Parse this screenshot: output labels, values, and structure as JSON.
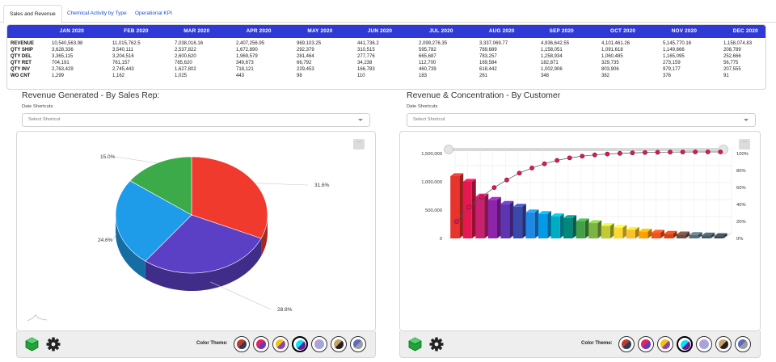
{
  "tabs": [
    {
      "label": "Sales and Revenue",
      "active": true
    },
    {
      "label": "Chemical Activity by Type",
      "active": false
    },
    {
      "label": "Operational KPI",
      "active": false
    }
  ],
  "summary": {
    "months": [
      "JAN 2020",
      "FEB 2020",
      "MAR 2020",
      "APR 2020",
      "MAY 2020",
      "JUN 2020",
      "JUL 2020",
      "AUG 2020",
      "SEP 2020",
      "OCT 2020",
      "NOV 2020",
      "DEC 2020"
    ],
    "rows": [
      {
        "label": "REVENUE",
        "values": [
          "10,540,563.98",
          "11,015,762.5",
          "7,038,016.16",
          "2,407,256.95",
          "969,103.25",
          "441,736.2",
          "2,099,276.35",
          "3,337,069.77",
          "4,936,642.55",
          "4,101,461.26",
          "5,145,770.16",
          "1,158,074.83"
        ]
      },
      {
        "label": "QTY SHIP",
        "values": [
          "3,628,336",
          "3,540,111",
          "2,537,822",
          "1,672,890",
          "292,379",
          "310,515",
          "595,782",
          "789,689",
          "1,158,051",
          "1,091,618",
          "1,149,666",
          "208,789"
        ]
      },
      {
        "label": "QTY DEL",
        "values": [
          "3,365,115",
          "3,204,516",
          "2,600,620",
          "1,969,579",
          "281,464",
          "277,776",
          "665,687",
          "783,257",
          "1,258,934",
          "1,060,485",
          "1,165,095",
          "252,666"
        ]
      },
      {
        "label": "QTY RET",
        "values": [
          "704,191",
          "761,157",
          "785,620",
          "349,673",
          "66,792",
          "34,238",
          "112,700",
          "169,584",
          "182,871",
          "329,735",
          "273,159",
          "56,775"
        ]
      },
      {
        "label": "QTY INV",
        "values": [
          "2,763,429",
          "2,745,443",
          "1,627,802",
          "718,121",
          "229,453",
          "166,783",
          "460,739",
          "618,442",
          "1,002,906",
          "803,906",
          "979,177",
          "207,555"
        ]
      },
      {
        "label": "WO CNT",
        "values": [
          "1,299",
          "1,162",
          "1,025",
          "443",
          "98",
          "110",
          "183",
          "261",
          "348",
          "382",
          "376",
          "91"
        ]
      }
    ]
  },
  "left_panel": {
    "title": "Revenue Generated - By Sales Rep:",
    "shortcut_label": "Date Shortcuts",
    "select_placeholder": "Select Shortcut",
    "menu_label": "···",
    "theme_label": "Color Theme:"
  },
  "right_panel": {
    "title": "Revenue & Concentration - By Customer",
    "shortcut_label": "Date Shortcuts",
    "select_placeholder": "Select Shortcut",
    "menu_label": "···",
    "theme_label": "Color Theme:"
  },
  "themes": [
    {
      "name": "theme-1",
      "colors": [
        "#c0392b",
        "#2c3e50"
      ]
    },
    {
      "name": "theme-2",
      "colors": [
        "#e91e63",
        "#673ab7"
      ]
    },
    {
      "name": "theme-3",
      "colors": [
        "#f1c40f",
        "#8e44ad"
      ]
    },
    {
      "name": "theme-4",
      "colors": [
        "#00e5ff",
        "#6a1b9a"
      ],
      "selected": true
    },
    {
      "name": "theme-5",
      "colors": [
        "#b39ddb",
        "#9fa8da"
      ]
    },
    {
      "name": "theme-6",
      "colors": [
        "#c8a165",
        "#222222"
      ]
    },
    {
      "name": "theme-7",
      "colors": [
        "#5c6bc0",
        "#9e9e9e"
      ]
    }
  ],
  "chart_data": [
    {
      "type": "pie",
      "title": "",
      "slices": [
        {
          "label": "31.6%",
          "value": 31.6,
          "color": "#f03a2e"
        },
        {
          "label": "28.8%",
          "value": 28.8,
          "color": "#5b3fc4"
        },
        {
          "label": "24.6%",
          "value": 24.6,
          "color": "#1e9be9"
        },
        {
          "label": "15.0%",
          "value": 15.0,
          "color": "#3daa4a"
        }
      ]
    },
    {
      "type": "bar",
      "title": "",
      "ylim": [
        0,
        1500000
      ],
      "y_ticks": [
        "0",
        "500,000",
        "1,000,000",
        "1,500,000"
      ],
      "y2_ticks": [
        "0%",
        "20%",
        "40%",
        "60%",
        "80%",
        "100%"
      ],
      "values": [
        1100000,
        1000000,
        740000,
        680000,
        610000,
        560000,
        460000,
        430000,
        390000,
        360000,
        300000,
        270000,
        220000,
        190000,
        150000,
        120000,
        100000,
        80000,
        70000,
        60000,
        50000,
        40000
      ],
      "colors": [
        "#e8342c",
        "#e5194f",
        "#c6226f",
        "#8e24aa",
        "#5e35b1",
        "#3949ab",
        "#1e88e5",
        "#039be5",
        "#00acc1",
        "#00897b",
        "#43a047",
        "#7cb342",
        "#c0ca33",
        "#fdd835",
        "#fbc02d",
        "#ffa000",
        "#f4511e",
        "#d84315",
        "#6d4c41",
        "#546e7a",
        "#455a64",
        "#37474f"
      ],
      "cumulative_pct": [
        18,
        35,
        47,
        58,
        67,
        75,
        81,
        86,
        90,
        93,
        95,
        96.5,
        97.5,
        98.3,
        98.9,
        99.3,
        99.6,
        99.8,
        99.9,
        100,
        100,
        100
      ]
    }
  ]
}
